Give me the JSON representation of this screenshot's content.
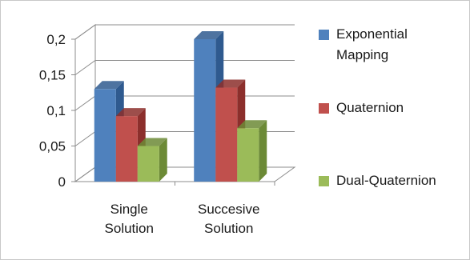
{
  "chart_data": {
    "type": "bar",
    "categories": [
      [
        "Single",
        "Solution"
      ],
      [
        "Succesive",
        "Solution"
      ]
    ],
    "series": [
      {
        "name": [
          "Exponential",
          "Mapping"
        ],
        "values": [
          0.13,
          0.2
        ],
        "color": "#4f81bd",
        "dark": "#2f5a8f"
      },
      {
        "name": [
          "Quaternion"
        ],
        "values": [
          0.092,
          0.132
        ],
        "color": "#c0504d",
        "dark": "#8c2f2c"
      },
      {
        "name": [
          "Dual-Quaternion"
        ],
        "values": [
          0.05,
          0.075
        ],
        "color": "#9bbb59",
        "dark": "#6c8a36"
      }
    ],
    "y_ticks": [
      "0",
      "0,05",
      "0,1",
      "0,15",
      "0,2"
    ],
    "ylim": [
      0,
      0.2
    ],
    "grid": true,
    "legend_position": "right",
    "bar_style": "3d"
  }
}
